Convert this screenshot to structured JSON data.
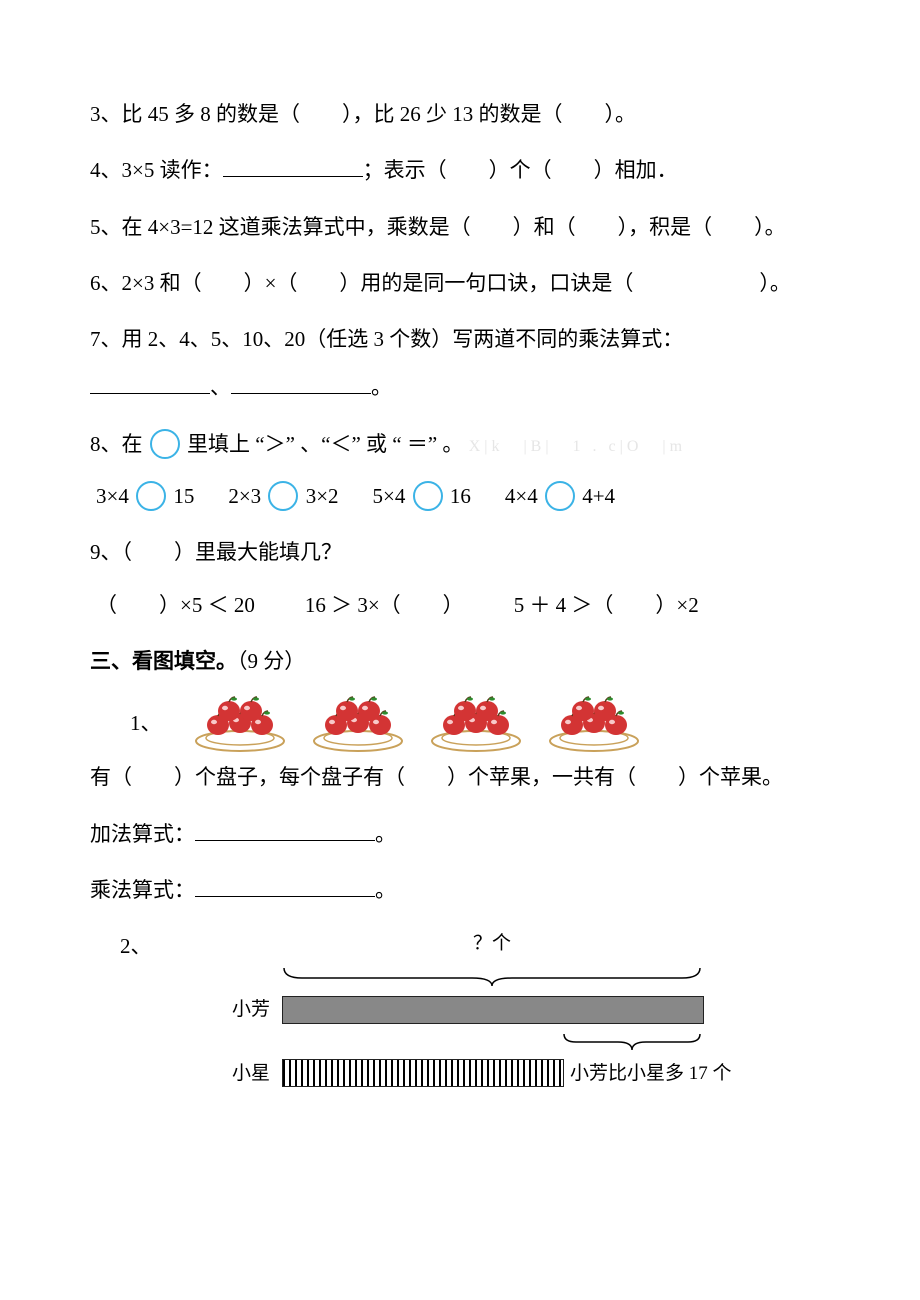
{
  "q3": "3、比 45 多 8 的数是（　　），比 26 少 13 的数是（　　）。",
  "q4_a": "4、3×5 读作：",
  "q4_b": "；表示（　　）个（　　）相加．",
  "q5": "5、在 4×3=12 这道乘法算式中，乘数是（　　）和（　　），积是（　　）。",
  "q6": "6、2×3 和（　　）×（　　）用的是同一句口诀，口诀是（　　　　　　）。",
  "q7_a": "7、用 2、4、5、10、20（任选 3 个数）写两道不同的乘法算式：",
  "q7_b": "、",
  "q7_c": "。",
  "q8_lead_a": "8、在",
  "q8_lead_b": " 里填上 “＞” 、“＜” 或 “ ＝” 。",
  "q8_watermark": "X|k　|B|　1 . c|O　|m",
  "q8_items": {
    "a_l": "3×4",
    "a_r": "15",
    "b_l": "2×3",
    "b_r": "3×2",
    "c_l": "5×4",
    "c_r": "16",
    "d_l": "4×4",
    "d_r": "4+4"
  },
  "q9_lead": "9、（　　）里最大能填几？",
  "q9_items": {
    "a": "（　　）×5 ＜ 20",
    "b": "16 ＞ 3×（　　）",
    "c": "5 ＋ 4 ＞（　　）×2"
  },
  "sec3_title": "三、看图填空。",
  "sec3_points": "（9 分）",
  "sec3_q1_num": "1、",
  "sec3_q1_text": "有（　　）个盘子，每个盘子有（　　）个苹果，一共有（　　）个苹果。",
  "sec3_q1_add": "加法算式：",
  "sec3_q1_mul": "乘法算式：",
  "sec3_q1_end": "。",
  "sec3_q2_num": "2、",
  "bar": {
    "qmark": "？个",
    "fang": "小芳",
    "xing": "小星",
    "diff": "小芳比小星多 17 个",
    "fang_width": 420,
    "xing_width": 280,
    "bar_color": "#888888",
    "stripe_dark": "#000000",
    "stripe_light": "#ffffff"
  },
  "apple": {
    "count_plates": 4,
    "apple_fill": "#d33434",
    "apple_highlight": "#f8c9c9",
    "leaf_fill": "#2e8b2e",
    "plate_fill": "#ffffff",
    "plate_stroke": "#c9a15a"
  },
  "circle_color": "#3bb3e6"
}
